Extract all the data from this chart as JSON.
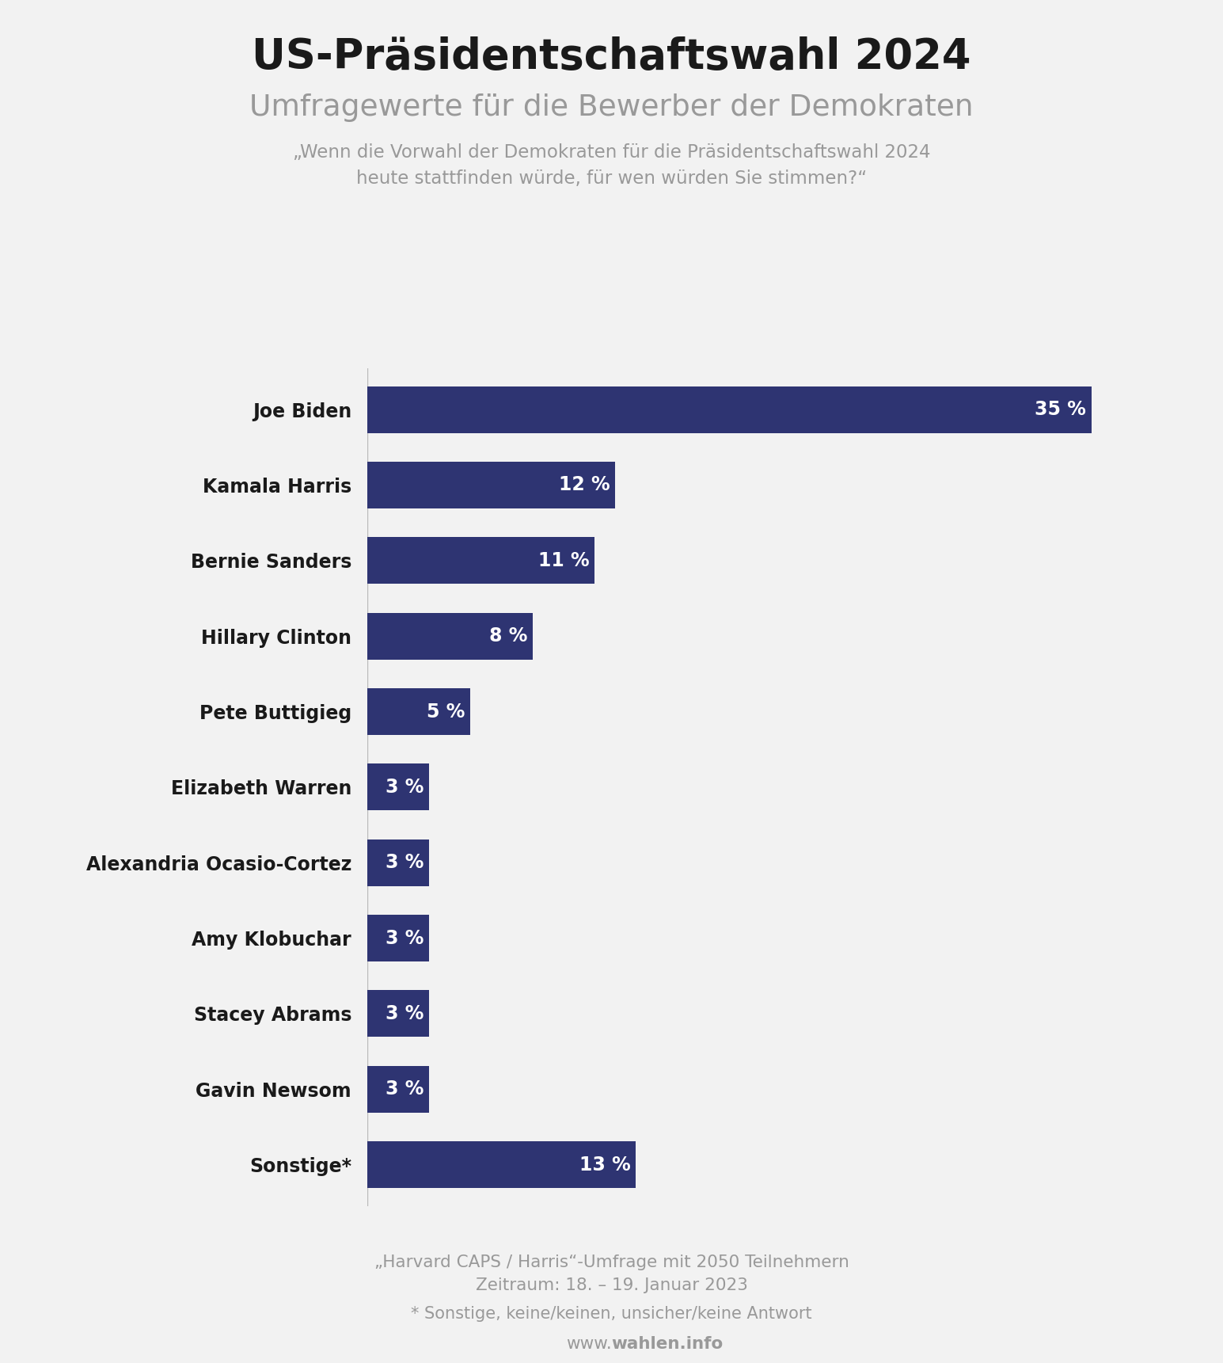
{
  "title": "US-Präsidentschaftswahl 2024",
  "subtitle": "Umfragewerte für die Bewerber der Demokraten",
  "question_line1": "„Wenn die Vorwahl der Demokraten für die Präsidentschaftswahl 2024",
  "question_line2": "heute stattfinden würde, für wen würden Sie stimmen?“",
  "categories": [
    "Joe Biden",
    "Kamala Harris",
    "Bernie Sanders",
    "Hillary Clinton",
    "Pete Buttigieg",
    "Elizabeth Warren",
    "Alexandria Ocasio-Cortez",
    "Amy Klobuchar",
    "Stacey Abrams",
    "Gavin Newsom",
    "Sonstige*"
  ],
  "values": [
    35,
    12,
    11,
    8,
    5,
    3,
    3,
    3,
    3,
    3,
    13
  ],
  "bar_color": "#2e3472",
  "label_color": "#ffffff",
  "background_color": "#f2f2f2",
  "title_color": "#1a1a1a",
  "subtitle_color": "#999999",
  "question_color": "#999999",
  "footnote1": "„Harvard CAPS / Harris“-Umfrage mit 2050 Teilnehmern",
  "footnote2": "Zeitraum: 18. – 19. Januar 2023",
  "footnote3": "* Sonstige, keine/keinen, unsicher/keine Antwort",
  "website_normal": "www.",
  "website_bold": "wahlen.info"
}
